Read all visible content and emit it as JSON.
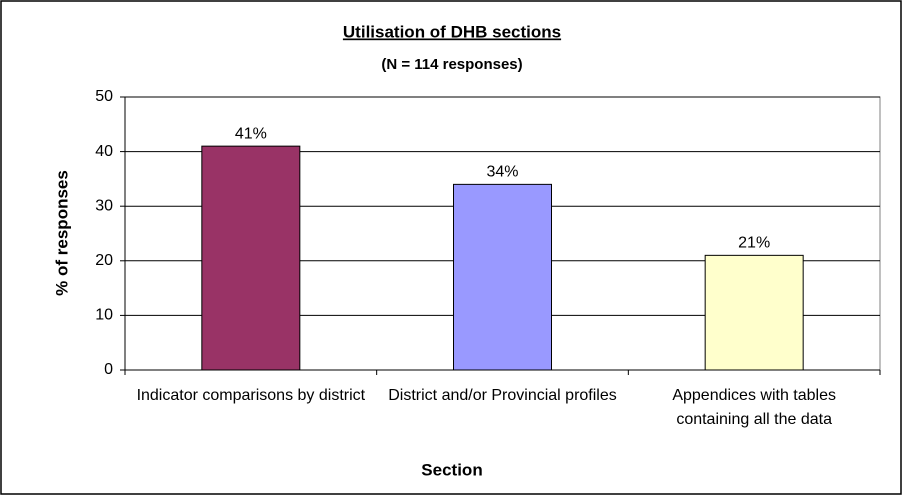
{
  "chart_data": {
    "type": "bar",
    "title": "Utilisation of DHB sections",
    "subtitle": "(N = 114 responses)",
    "x_label": "Section",
    "y_label": "% of responses",
    "categories": [
      "Indicator comparisons by district",
      "District and/or Provincial profiles",
      "Appendices with tables containing all the data"
    ],
    "values": [
      41,
      34,
      21
    ],
    "value_labels": [
      "41%",
      "34%",
      "21%"
    ],
    "colors": [
      "#993366",
      "#9999ff",
      "#ffffcc"
    ],
    "ylim": [
      0,
      50
    ],
    "yticks": [
      0,
      10,
      20,
      30,
      40,
      50
    ],
    "grid": true
  }
}
